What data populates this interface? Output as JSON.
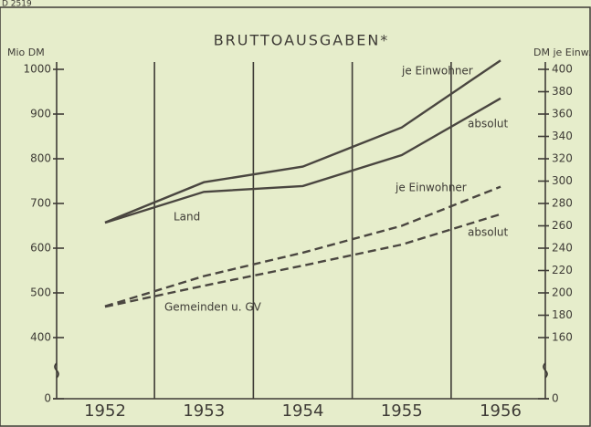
{
  "code": "D 2519",
  "chart_data": {
    "type": "line",
    "title": "BRUTTOAUSGABEN*",
    "ylabel": "Mio DM",
    "y2label": "DM je Einw.",
    "categories": [
      "1952",
      "1953",
      "1954",
      "1955",
      "1956"
    ],
    "ylim": [
      0,
      1000
    ],
    "yticks": [
      0,
      400,
      500,
      600,
      700,
      800,
      900,
      1000
    ],
    "y2lim": [
      0,
      400
    ],
    "y2ticks": [
      0,
      160,
      180,
      200,
      220,
      240,
      260,
      280,
      300,
      320,
      340,
      360,
      380,
      400
    ],
    "axis_break": true,
    "grid_x": true,
    "series": [
      {
        "name": "je Einwohner",
        "axis": "y2",
        "line_style": "solid",
        "color": "#4a4640",
        "values": [
          263,
          299,
          313,
          348,
          408
        ]
      },
      {
        "name": "absolut",
        "line_style": "solid",
        "color": "#4a4640",
        "values": [
          657,
          726,
          739,
          808,
          935
        ]
      },
      {
        "name": "je Einwohner",
        "axis": "y2",
        "line_style": "dashed",
        "color": "#4a4640",
        "values": [
          188,
          215,
          236,
          260,
          295
        ]
      },
      {
        "name": "absolut",
        "line_style": "dashed",
        "color": "#4a4640",
        "values": [
          469,
          516,
          561,
          608,
          676
        ]
      }
    ],
    "annotations": [
      "Land",
      "Gemeinden u. GV"
    ]
  }
}
